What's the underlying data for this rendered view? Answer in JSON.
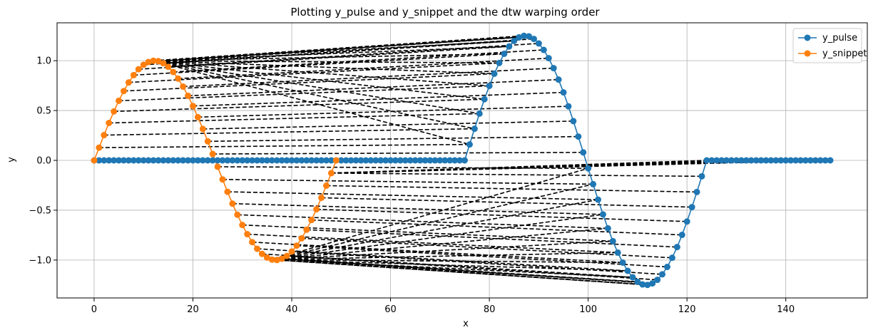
{
  "chart_data": {
    "type": "line",
    "title": "Plotting y_pulse and y_snippet and the dtw warping order",
    "xlabel": "x",
    "ylabel": "y",
    "xlim": [
      -7.5,
      156.5
    ],
    "ylim": [
      -1.38,
      1.38
    ],
    "xticks": [
      0,
      20,
      40,
      60,
      80,
      100,
      120,
      140
    ],
    "xtick_labels": [
      "0",
      "20",
      "40",
      "60",
      "80",
      "100",
      "120",
      "140"
    ],
    "yticks": [
      -1.0,
      -0.5,
      0.0,
      0.5,
      1.0
    ],
    "ytick_labels": [
      "−1.0",
      "−0.5",
      "0.0",
      "0.5",
      "1.0"
    ],
    "grid": true,
    "legend_position": "top-right",
    "series": [
      {
        "name": "y_pulse",
        "color": "#1f77b4",
        "marker": "circle",
        "generator": "pulse",
        "n_points": 150,
        "pulse_start": 75,
        "pulse_end": 124,
        "amplitude": 1.25
      },
      {
        "name": "y_snippet",
        "color": "#ff7f0e",
        "marker": "circle",
        "generator": "snippet",
        "n_points": 50,
        "amplitude": 1.0
      }
    ],
    "warping_path_style": {
      "color": "#000000",
      "dash": "dashed",
      "description": "dtw warping order connections between y_snippet and y_pulse points"
    }
  }
}
